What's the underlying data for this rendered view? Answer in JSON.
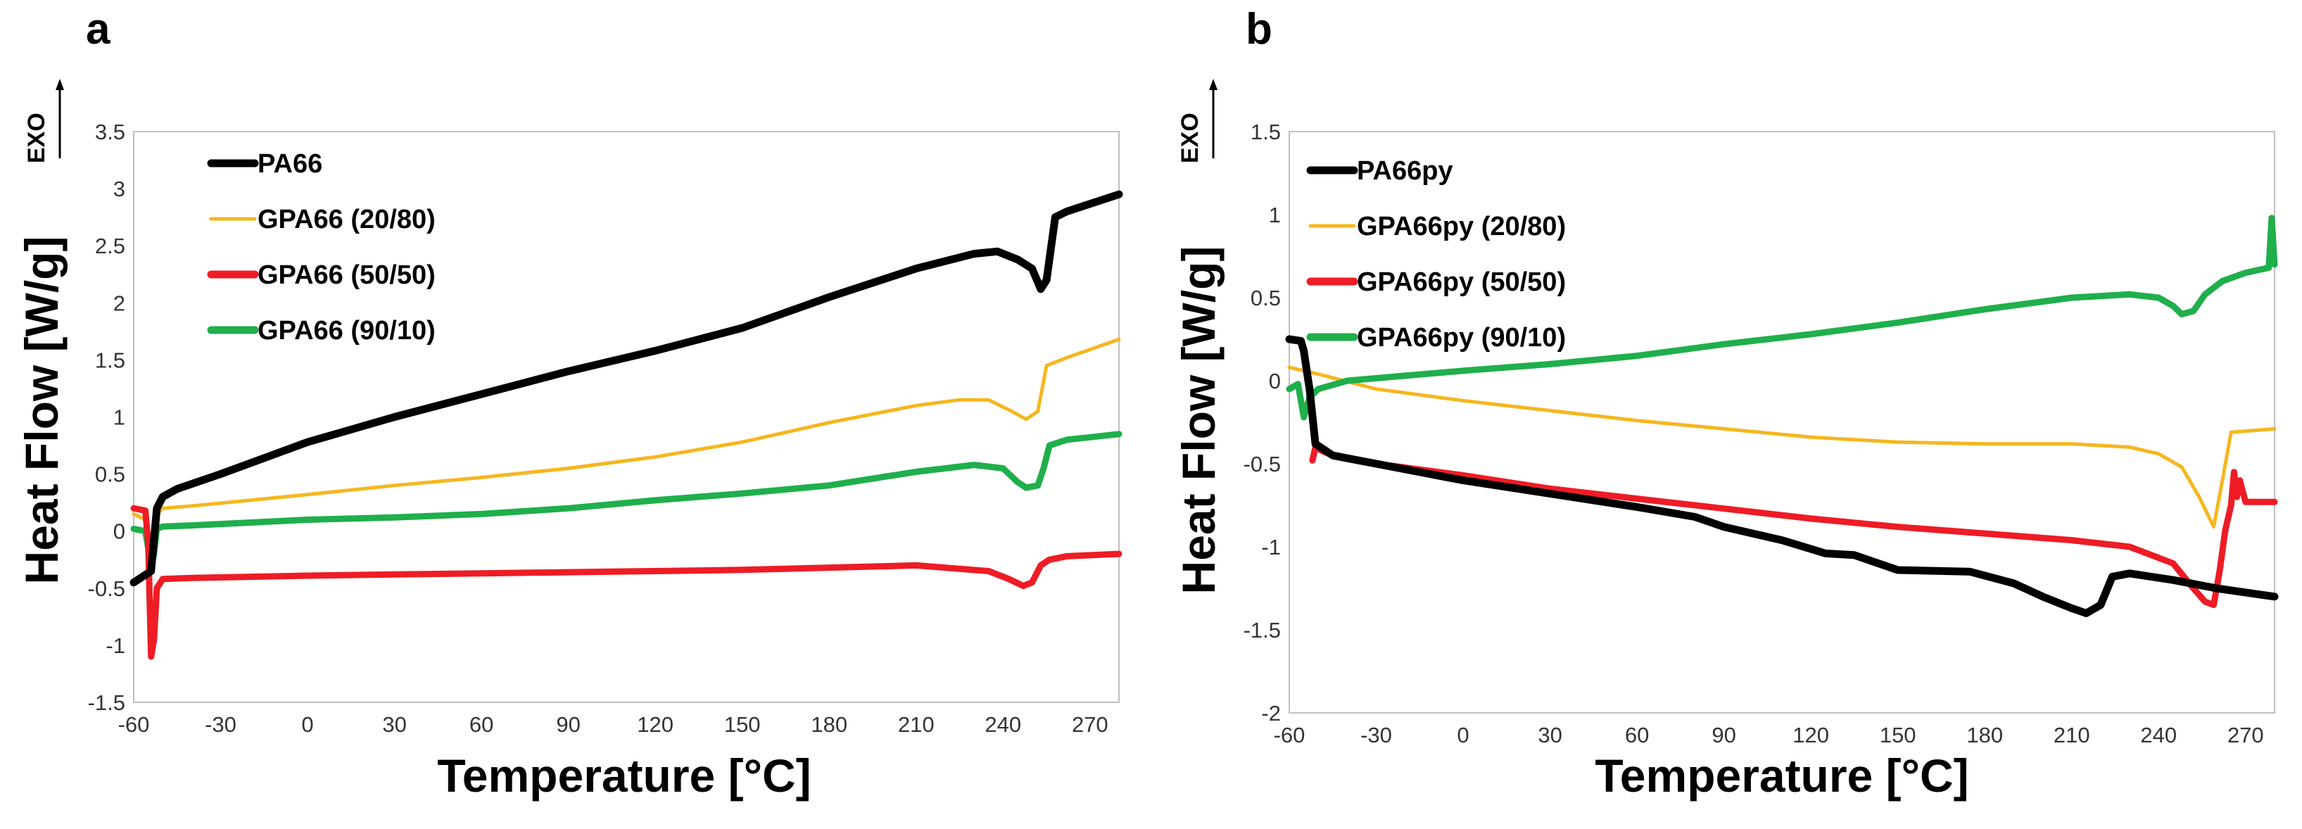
{
  "chart_data": [
    {
      "panel": "a",
      "type": "line",
      "xlabel": "Temperature [°C]",
      "ylabel": "Heat Flow [W/g]",
      "exo_label": "EXO",
      "xlim": [
        -60,
        280
      ],
      "ylim": [
        -1.5,
        3.5
      ],
      "xticks": [
        -60,
        -30,
        0,
        30,
        60,
        90,
        120,
        150,
        180,
        210,
        240,
        270
      ],
      "yticks": [
        -1.5,
        -1,
        -0.5,
        0,
        0.5,
        1,
        1.5,
        2,
        2.5,
        3,
        3.5
      ],
      "series": [
        {
          "name": "PA66",
          "color": "#000000",
          "x": [
            -60,
            -54,
            -52,
            -50,
            -45,
            -30,
            0,
            30,
            60,
            90,
            120,
            150,
            180,
            210,
            230,
            238,
            245,
            250,
            253,
            255,
            258,
            262,
            280
          ],
          "y": [
            -0.45,
            -0.35,
            0.2,
            0.3,
            0.37,
            0.5,
            0.78,
            1.0,
            1.2,
            1.4,
            1.58,
            1.78,
            2.05,
            2.3,
            2.43,
            2.45,
            2.38,
            2.3,
            2.12,
            2.2,
            2.75,
            2.8,
            2.95
          ]
        },
        {
          "name": "GPA66 (20/80)",
          "color": "#F5B71F",
          "x": [
            -60,
            -56,
            -54,
            -52,
            -50,
            -40,
            0,
            30,
            60,
            90,
            120,
            150,
            180,
            210,
            225,
            235,
            243,
            248,
            252,
            255,
            262,
            280
          ],
          "y": [
            0.15,
            0.1,
            -0.15,
            0.15,
            0.2,
            0.22,
            0.32,
            0.4,
            0.47,
            0.55,
            0.65,
            0.78,
            0.95,
            1.1,
            1.15,
            1.15,
            1.05,
            0.98,
            1.05,
            1.45,
            1.52,
            1.68
          ]
        },
        {
          "name": "GPA66 (50/50)",
          "color": "#EE1C25",
          "x": [
            -60,
            -56,
            -55,
            -54,
            -53,
            -52,
            -50,
            -40,
            0,
            30,
            60,
            90,
            120,
            150,
            180,
            210,
            235,
            242,
            247,
            250,
            253,
            256,
            262,
            280
          ],
          "y": [
            0.2,
            0.18,
            -0.1,
            -1.1,
            -0.95,
            -0.5,
            -0.42,
            -0.41,
            -0.39,
            -0.38,
            -0.37,
            -0.36,
            -0.35,
            -0.34,
            -0.32,
            -0.3,
            -0.35,
            -0.42,
            -0.48,
            -0.45,
            -0.3,
            -0.25,
            -0.22,
            -0.2
          ]
        },
        {
          "name": "GPA66 (90/10)",
          "color": "#1FAF4B",
          "x": [
            -60,
            -56,
            -54,
            -53,
            -52,
            -50,
            -40,
            0,
            30,
            60,
            90,
            120,
            150,
            180,
            210,
            230,
            240,
            245,
            248,
            252,
            254,
            256,
            262,
            280
          ],
          "y": [
            0.02,
            0.0,
            -0.3,
            -0.2,
            0.02,
            0.04,
            0.05,
            0.1,
            0.12,
            0.15,
            0.2,
            0.27,
            0.33,
            0.4,
            0.52,
            0.58,
            0.55,
            0.43,
            0.38,
            0.4,
            0.55,
            0.75,
            0.8,
            0.85
          ]
        }
      ]
    },
    {
      "panel": "b",
      "type": "line",
      "xlabel": "Temperature [°C]",
      "ylabel": "Heat Flow [W/g]",
      "exo_label": "EXO",
      "xlim": [
        -60,
        280
      ],
      "ylim": [
        -2,
        1.5
      ],
      "xticks": [
        -60,
        -30,
        0,
        30,
        60,
        90,
        120,
        150,
        180,
        210,
        240,
        270
      ],
      "yticks": [
        -2,
        -1.5,
        -1,
        -0.5,
        0,
        0.5,
        1,
        1.5
      ],
      "series": [
        {
          "name": "PA66py",
          "color": "#000000",
          "x": [
            -60,
            -56,
            -55,
            -53,
            -51,
            -45,
            -30,
            0,
            30,
            60,
            80,
            90,
            110,
            125,
            135,
            150,
            175,
            190,
            200,
            210,
            215,
            220,
            224,
            230,
            245,
            260,
            280
          ],
          "y": [
            0.25,
            0.24,
            0.18,
            -0.05,
            -0.38,
            -0.45,
            -0.5,
            -0.6,
            -0.68,
            -0.76,
            -0.82,
            -0.88,
            -0.96,
            -1.04,
            -1.05,
            -1.14,
            -1.15,
            -1.22,
            -1.3,
            -1.37,
            -1.4,
            -1.35,
            -1.18,
            -1.16,
            -1.2,
            -1.25,
            -1.3
          ]
        },
        {
          "name": "GPA66py (20/80)",
          "color": "#F5B71F",
          "x": [
            -60,
            -50,
            -30,
            0,
            30,
            60,
            90,
            120,
            150,
            180,
            210,
            230,
            240,
            248,
            254,
            259,
            262,
            265,
            280
          ],
          "y": [
            0.08,
            0.04,
            -0.05,
            -0.12,
            -0.18,
            -0.24,
            -0.29,
            -0.34,
            -0.37,
            -0.38,
            -0.38,
            -0.4,
            -0.44,
            -0.52,
            -0.7,
            -0.88,
            -0.6,
            -0.31,
            -0.29
          ]
        },
        {
          "name": "GPA66py (50/50)",
          "color": "#EE1C25",
          "x": [
            -52,
            -51,
            -49,
            -45,
            -30,
            0,
            30,
            60,
            90,
            120,
            150,
            180,
            210,
            230,
            245,
            252,
            256,
            259,
            261,
            263,
            265,
            266,
            267,
            268,
            270,
            280
          ],
          "y": [
            -0.48,
            -0.4,
            -0.42,
            -0.45,
            -0.5,
            -0.57,
            -0.65,
            -0.71,
            -0.77,
            -0.83,
            -0.88,
            -0.92,
            -0.96,
            -1.0,
            -1.1,
            -1.25,
            -1.33,
            -1.35,
            -1.15,
            -0.9,
            -0.75,
            -0.55,
            -0.7,
            -0.6,
            -0.73,
            -0.73
          ]
        },
        {
          "name": "GPA66py (90/10)",
          "color": "#1FAF4B",
          "x": [
            -60,
            -57,
            -55,
            -53,
            -50,
            -40,
            -20,
            0,
            30,
            60,
            90,
            120,
            150,
            180,
            210,
            230,
            240,
            245,
            248,
            252,
            256,
            262,
            270,
            278,
            279,
            280
          ],
          "y": [
            -0.05,
            -0.02,
            -0.22,
            -0.1,
            -0.05,
            0.0,
            0.03,
            0.06,
            0.1,
            0.15,
            0.22,
            0.28,
            0.35,
            0.43,
            0.5,
            0.52,
            0.5,
            0.45,
            0.4,
            0.42,
            0.52,
            0.6,
            0.65,
            0.68,
            0.98,
            0.7
          ]
        }
      ]
    }
  ]
}
